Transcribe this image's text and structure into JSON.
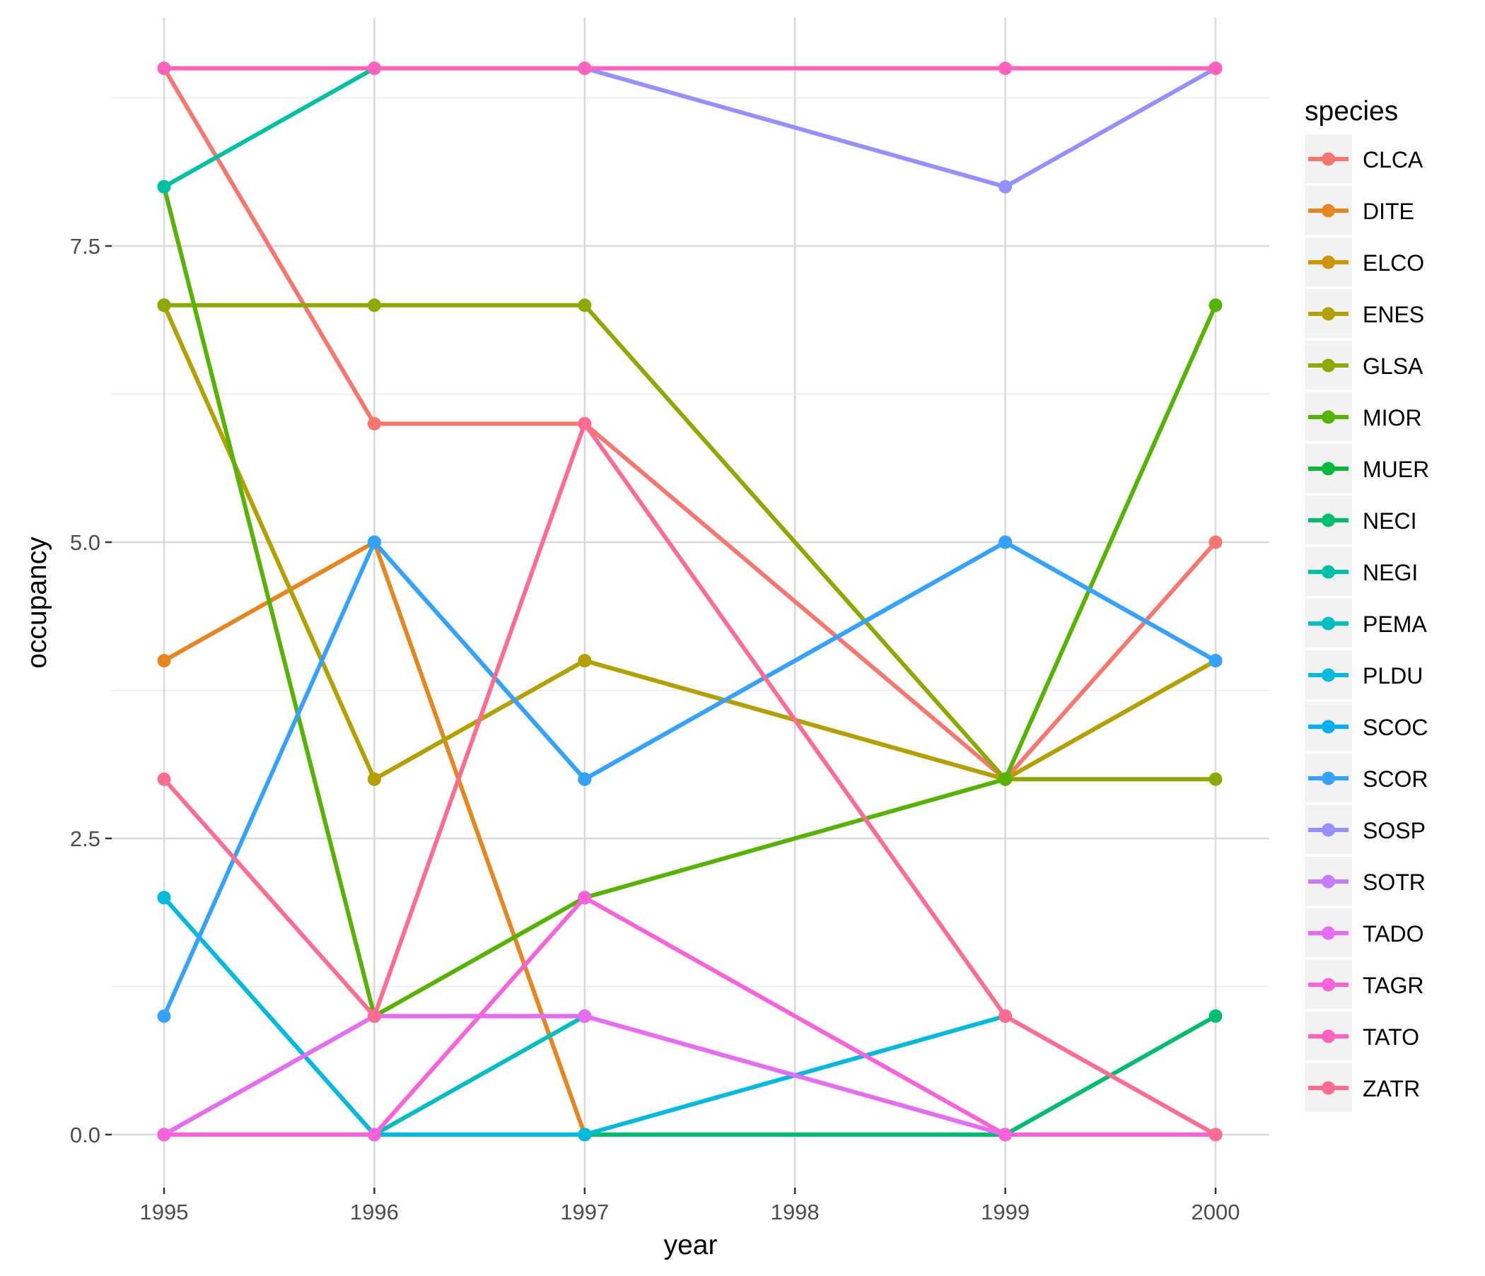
{
  "chart_data": {
    "type": "line",
    "title": "",
    "xlabel": "year",
    "ylabel": "occupancy",
    "x_ticks": [
      "1995",
      "1996",
      "1997",
      "1998",
      "1999",
      "2000"
    ],
    "y_ticks": [
      "0.0",
      "2.5",
      "5.0",
      "7.5"
    ],
    "xlim": [
      1995,
      2000
    ],
    "ylim": [
      0,
      9
    ],
    "grid": true,
    "legend": {
      "title": "species",
      "position": "right"
    },
    "series": [
      {
        "name": "CLCA",
        "color": "#F8766D",
        "x": [
          1995,
          1996,
          1997,
          1999,
          2000
        ],
        "y": [
          9,
          6,
          6,
          3,
          5
        ]
      },
      {
        "name": "DITE",
        "color": "#E7851E",
        "x": [
          1995,
          1996,
          1997
        ],
        "y": [
          4,
          5,
          0
        ]
      },
      {
        "name": "ELCO",
        "color": "#D09400",
        "x": [
          1995,
          1996,
          1997,
          1999,
          2000
        ],
        "y": [
          7,
          3,
          4,
          3,
          4
        ]
      },
      {
        "name": "ENES",
        "color": "#B2A100",
        "x": [
          1995,
          1996,
          1997,
          1999,
          2000
        ],
        "y": [
          7,
          3,
          4,
          3,
          4
        ]
      },
      {
        "name": "GLSA",
        "color": "#8BAB00",
        "x": [
          1995,
          1996,
          1997,
          1999,
          2000
        ],
        "y": [
          7,
          7,
          7,
          3,
          3
        ]
      },
      {
        "name": "MIOR",
        "color": "#55B400",
        "x": [
          1995,
          1996,
          1997,
          1999,
          2000
        ],
        "y": [
          8,
          1,
          2,
          3,
          7
        ]
      },
      {
        "name": "MUER",
        "color": "#00BA38",
        "x": [
          1997,
          1999
        ],
        "y": [
          0,
          0
        ]
      },
      {
        "name": "NECI",
        "color": "#00BE70",
        "x": [
          1997,
          1999,
          2000
        ],
        "y": [
          0,
          0,
          1
        ]
      },
      {
        "name": "NEGI",
        "color": "#00C1A3",
        "x": [
          1995,
          1996
        ],
        "y": [
          8,
          9
        ]
      },
      {
        "name": "PEMA",
        "color": "#00BFC4",
        "x": [
          1995,
          1996,
          1997
        ],
        "y": [
          2,
          0,
          1
        ]
      },
      {
        "name": "PLDU",
        "color": "#00BAE0",
        "x": [
          1995,
          1996,
          1997,
          1999
        ],
        "y": [
          2,
          0,
          0,
          1
        ]
      },
      {
        "name": "SCOC",
        "color": "#00B0F6",
        "x": [
          1996,
          1997,
          1999,
          2000
        ],
        "y": [
          5,
          3,
          5,
          4
        ]
      },
      {
        "name": "SCOR",
        "color": "#35A2FF",
        "x": [
          1995,
          1996,
          1997,
          1999,
          2000
        ],
        "y": [
          1,
          5,
          3,
          5,
          4
        ]
      },
      {
        "name": "SOSP",
        "color": "#9590FF",
        "x": [
          1997,
          1999,
          2000
        ],
        "y": [
          9,
          8,
          9
        ]
      },
      {
        "name": "SOTR",
        "color": "#C77CFF",
        "x": [
          1995,
          1996,
          1997,
          1999
        ],
        "y": [
          0,
          1,
          1,
          0
        ]
      },
      {
        "name": "TADO",
        "color": "#E76BF3",
        "x": [
          1995,
          1996,
          1997,
          1999,
          2000
        ],
        "y": [
          0,
          1,
          1,
          0,
          0
        ]
      },
      {
        "name": "TAGR",
        "color": "#FA62DB",
        "x": [
          1995,
          1996,
          1997,
          1999,
          2000
        ],
        "y": [
          0,
          0,
          2,
          0,
          0
        ]
      },
      {
        "name": "TATO",
        "color": "#FF62BC",
        "x": [
          1995,
          1996,
          1997,
          1999,
          2000
        ],
        "y": [
          9,
          9,
          9,
          9,
          9
        ]
      },
      {
        "name": "ZATR",
        "color": "#FF6C91",
        "x": [
          1995,
          1996,
          1997,
          1999,
          2000
        ],
        "y": [
          3,
          1,
          6,
          1,
          0
        ]
      }
    ]
  }
}
